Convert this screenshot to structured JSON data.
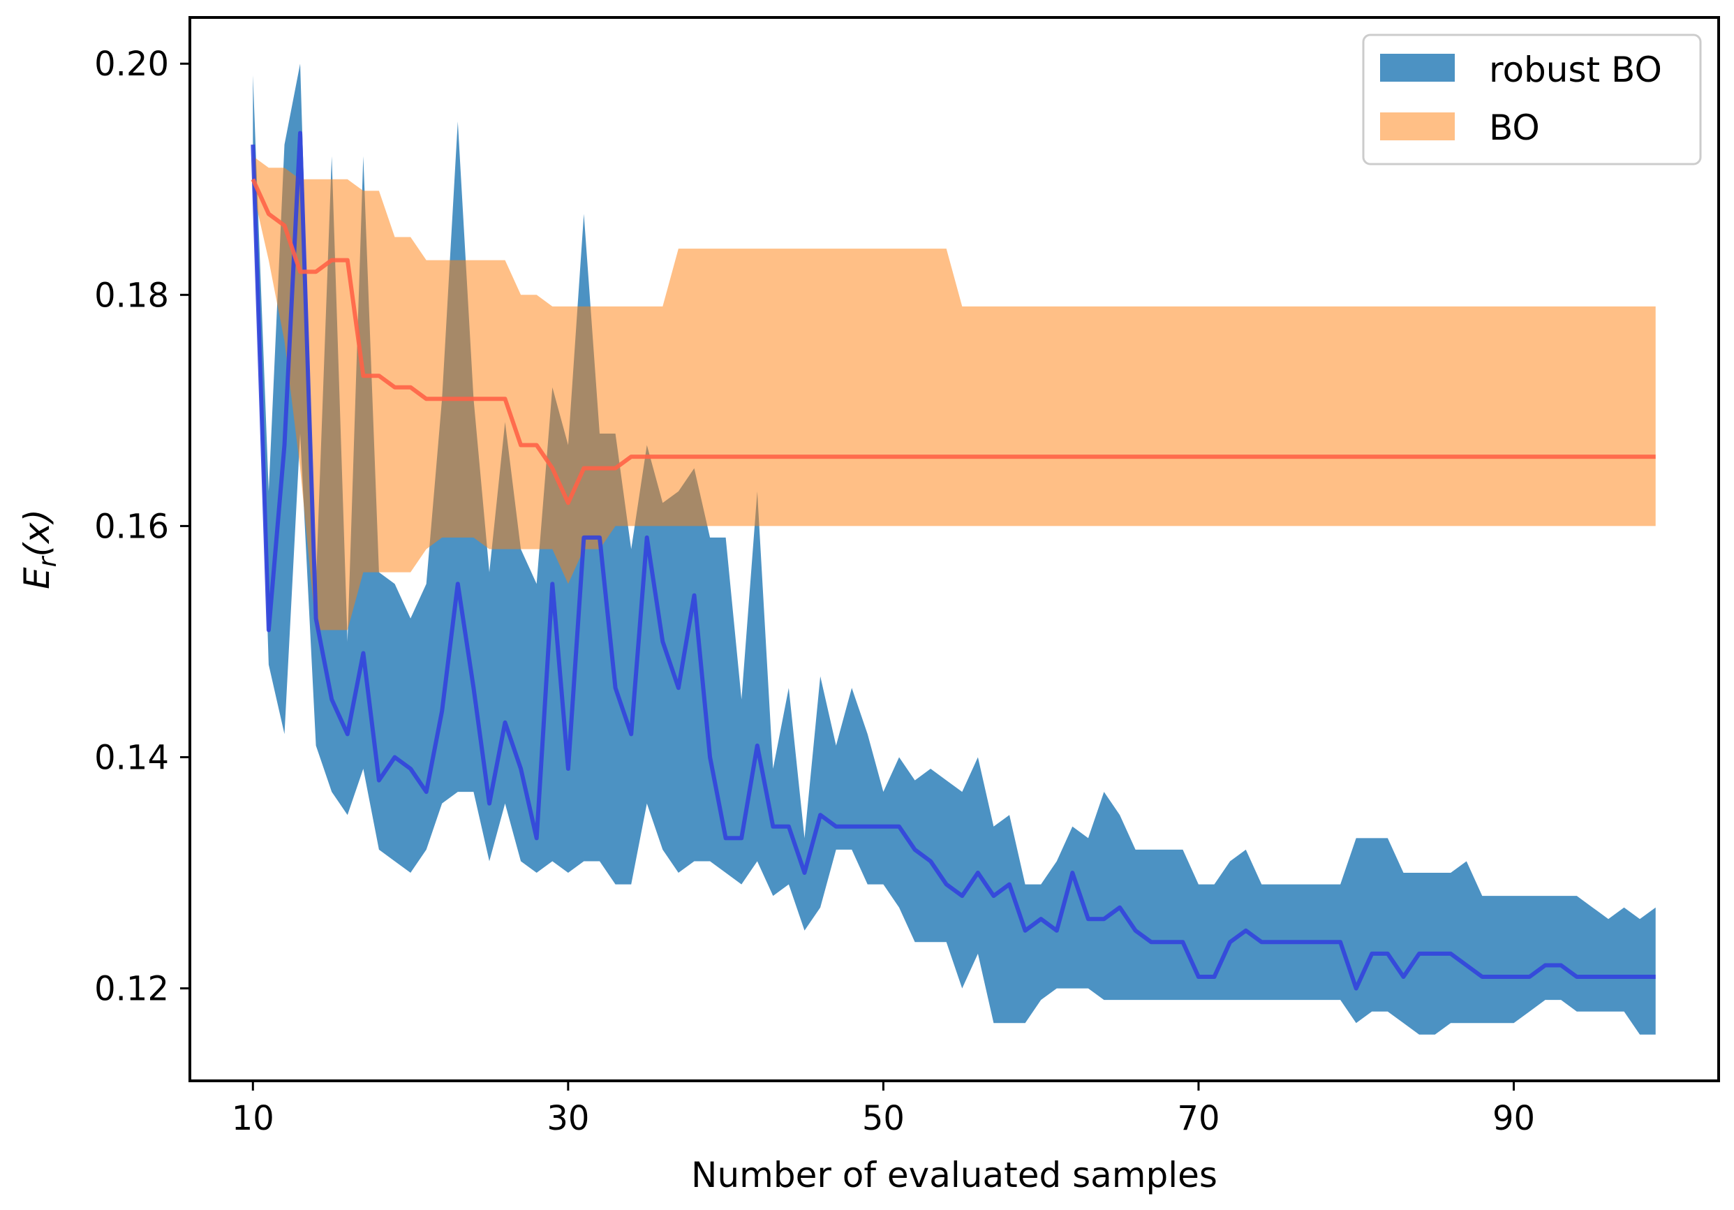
{
  "chart_data": {
    "type": "area",
    "title": "",
    "xlabel": "Number of evaluated samples",
    "ylabel": "E_r(x)",
    "ylabel_main": "E",
    "ylabel_sub": "r",
    "ylabel_paren": "(x)",
    "xlim": [
      6,
      103
    ],
    "ylim": [
      0.112,
      0.204
    ],
    "xticks": [
      10,
      30,
      50,
      70,
      90
    ],
    "xtick_labels": [
      "10",
      "30",
      "50",
      "70",
      "90"
    ],
    "yticks": [
      0.12,
      0.14,
      0.16,
      0.18,
      0.2
    ],
    "ytick_labels": [
      "0.12",
      "0.14",
      "0.16",
      "0.18",
      "0.20"
    ],
    "legend_position": "top-right",
    "series": [
      {
        "name": "robust BO",
        "fill_color": "#1f77b4",
        "fill_opacity": 0.8,
        "line_color": "#3344dd",
        "x": [
          10,
          11,
          12,
          13,
          14,
          15,
          16,
          17,
          18,
          19,
          20,
          21,
          22,
          23,
          24,
          25,
          26,
          27,
          28,
          29,
          30,
          31,
          32,
          33,
          34,
          35,
          36,
          37,
          38,
          39,
          40,
          41,
          42,
          43,
          44,
          45,
          46,
          47,
          48,
          49,
          50,
          51,
          52,
          53,
          54,
          55,
          56,
          57,
          58,
          59,
          60,
          61,
          62,
          63,
          64,
          65,
          66,
          67,
          68,
          69,
          70,
          71,
          72,
          73,
          74,
          75,
          76,
          77,
          78,
          79,
          80,
          81,
          82,
          83,
          84,
          85,
          86,
          87,
          88,
          89,
          90,
          91,
          92,
          93,
          94,
          95,
          96,
          97,
          98,
          99
        ],
        "mean": [
          0.193,
          0.151,
          0.167,
          0.194,
          0.152,
          0.145,
          0.142,
          0.149,
          0.138,
          0.14,
          0.139,
          0.137,
          0.144,
          0.155,
          0.146,
          0.136,
          0.143,
          0.139,
          0.133,
          0.155,
          0.139,
          0.159,
          0.159,
          0.146,
          0.142,
          0.159,
          0.15,
          0.146,
          0.154,
          0.14,
          0.133,
          0.133,
          0.141,
          0.134,
          0.134,
          0.13,
          0.135,
          0.134,
          0.134,
          0.134,
          0.134,
          0.134,
          0.132,
          0.131,
          0.129,
          0.128,
          0.13,
          0.128,
          0.129,
          0.125,
          0.126,
          0.125,
          0.13,
          0.126,
          0.126,
          0.127,
          0.125,
          0.124,
          0.124,
          0.124,
          0.121,
          0.121,
          0.124,
          0.125,
          0.124,
          0.124,
          0.124,
          0.124,
          0.124,
          0.124,
          0.12,
          0.123,
          0.123,
          0.121,
          0.123,
          0.123,
          0.123,
          0.122,
          0.121,
          0.121,
          0.121,
          0.121,
          0.122,
          0.122,
          0.121,
          0.121,
          0.121,
          0.121,
          0.121,
          0.121
        ],
        "upper": [
          0.199,
          0.163,
          0.193,
          0.2,
          0.155,
          0.192,
          0.15,
          0.192,
          0.156,
          0.155,
          0.152,
          0.155,
          0.171,
          0.195,
          0.171,
          0.156,
          0.169,
          0.158,
          0.155,
          0.172,
          0.167,
          0.187,
          0.168,
          0.168,
          0.158,
          0.167,
          0.162,
          0.163,
          0.165,
          0.159,
          0.159,
          0.145,
          0.163,
          0.139,
          0.146,
          0.133,
          0.147,
          0.141,
          0.146,
          0.142,
          0.137,
          0.14,
          0.138,
          0.139,
          0.138,
          0.137,
          0.14,
          0.134,
          0.135,
          0.129,
          0.129,
          0.131,
          0.134,
          0.133,
          0.137,
          0.135,
          0.132,
          0.132,
          0.132,
          0.132,
          0.129,
          0.129,
          0.131,
          0.132,
          0.129,
          0.129,
          0.129,
          0.129,
          0.129,
          0.129,
          0.133,
          0.133,
          0.133,
          0.13,
          0.13,
          0.13,
          0.13,
          0.131,
          0.128,
          0.128,
          0.128,
          0.128,
          0.128,
          0.128,
          0.128,
          0.127,
          0.126,
          0.127,
          0.126,
          0.127
        ],
        "lower": [
          0.19,
          0.148,
          0.142,
          0.168,
          0.141,
          0.137,
          0.135,
          0.139,
          0.132,
          0.131,
          0.13,
          0.132,
          0.136,
          0.137,
          0.137,
          0.131,
          0.136,
          0.131,
          0.13,
          0.131,
          0.13,
          0.131,
          0.131,
          0.129,
          0.129,
          0.136,
          0.132,
          0.13,
          0.131,
          0.131,
          0.13,
          0.129,
          0.131,
          0.128,
          0.129,
          0.125,
          0.127,
          0.132,
          0.132,
          0.129,
          0.129,
          0.127,
          0.124,
          0.124,
          0.124,
          0.12,
          0.123,
          0.117,
          0.117,
          0.117,
          0.119,
          0.12,
          0.12,
          0.12,
          0.119,
          0.119,
          0.119,
          0.119,
          0.119,
          0.119,
          0.119,
          0.119,
          0.119,
          0.119,
          0.119,
          0.119,
          0.119,
          0.119,
          0.119,
          0.119,
          0.117,
          0.118,
          0.118,
          0.117,
          0.116,
          0.116,
          0.117,
          0.117,
          0.117,
          0.117,
          0.117,
          0.118,
          0.119,
          0.119,
          0.118,
          0.118,
          0.118,
          0.118,
          0.116,
          0.116
        ]
      },
      {
        "name": "BO",
        "fill_color": "#ff7f0e",
        "fill_opacity": 0.5,
        "line_color": "#ff6347",
        "x": [
          10,
          11,
          12,
          13,
          14,
          15,
          16,
          17,
          18,
          19,
          20,
          21,
          22,
          23,
          24,
          25,
          26,
          27,
          28,
          29,
          30,
          31,
          32,
          33,
          34,
          35,
          36,
          37,
          38,
          39,
          40,
          41,
          42,
          43,
          44,
          45,
          46,
          47,
          48,
          49,
          50,
          51,
          52,
          53,
          54,
          55,
          56,
          57,
          58,
          59,
          60,
          61,
          62,
          63,
          64,
          65,
          66,
          67,
          68,
          69,
          70,
          71,
          72,
          73,
          74,
          75,
          76,
          77,
          78,
          79,
          80,
          81,
          82,
          83,
          84,
          85,
          86,
          87,
          88,
          89,
          90,
          91,
          92,
          93,
          94,
          95,
          96,
          97,
          98,
          99
        ],
        "mean": [
          0.19,
          0.187,
          0.186,
          0.182,
          0.182,
          0.183,
          0.183,
          0.173,
          0.173,
          0.172,
          0.172,
          0.171,
          0.171,
          0.171,
          0.171,
          0.171,
          0.171,
          0.167,
          0.167,
          0.165,
          0.162,
          0.165,
          0.165,
          0.165,
          0.166,
          0.166,
          0.166,
          0.166,
          0.166,
          0.166,
          0.166,
          0.166,
          0.166,
          0.166,
          0.166,
          0.166,
          0.166,
          0.166,
          0.166,
          0.166,
          0.166,
          0.166,
          0.166,
          0.166,
          0.166,
          0.166,
          0.166,
          0.166,
          0.166,
          0.166,
          0.166,
          0.166,
          0.166,
          0.166,
          0.166,
          0.166,
          0.166,
          0.166,
          0.166,
          0.166,
          0.166,
          0.166,
          0.166,
          0.166,
          0.166,
          0.166,
          0.166,
          0.166,
          0.166,
          0.166,
          0.166,
          0.166,
          0.166,
          0.166,
          0.166,
          0.166,
          0.166,
          0.166,
          0.166,
          0.166,
          0.166,
          0.166,
          0.166,
          0.166,
          0.166,
          0.166,
          0.166,
          0.166,
          0.166,
          0.166
        ],
        "upper": [
          0.192,
          0.191,
          0.191,
          0.19,
          0.19,
          0.19,
          0.19,
          0.189,
          0.189,
          0.185,
          0.185,
          0.183,
          0.183,
          0.183,
          0.183,
          0.183,
          0.183,
          0.18,
          0.18,
          0.179,
          0.179,
          0.179,
          0.179,
          0.179,
          0.179,
          0.179,
          0.179,
          0.184,
          0.184,
          0.184,
          0.184,
          0.184,
          0.184,
          0.184,
          0.184,
          0.184,
          0.184,
          0.184,
          0.184,
          0.184,
          0.184,
          0.184,
          0.184,
          0.184,
          0.184,
          0.179,
          0.179,
          0.179,
          0.179,
          0.179,
          0.179,
          0.179,
          0.179,
          0.179,
          0.179,
          0.179,
          0.179,
          0.179,
          0.179,
          0.179,
          0.179,
          0.179,
          0.179,
          0.179,
          0.179,
          0.179,
          0.179,
          0.179,
          0.179,
          0.179,
          0.179,
          0.179,
          0.179,
          0.179,
          0.179,
          0.179,
          0.179,
          0.179,
          0.179,
          0.179,
          0.179,
          0.179,
          0.179,
          0.179,
          0.179,
          0.179,
          0.179,
          0.179,
          0.179,
          0.179
        ],
        "lower": [
          0.189,
          0.183,
          0.176,
          0.165,
          0.151,
          0.151,
          0.151,
          0.156,
          0.156,
          0.156,
          0.156,
          0.158,
          0.159,
          0.159,
          0.159,
          0.158,
          0.158,
          0.158,
          0.158,
          0.158,
          0.155,
          0.158,
          0.158,
          0.16,
          0.16,
          0.16,
          0.16,
          0.16,
          0.16,
          0.16,
          0.16,
          0.16,
          0.16,
          0.16,
          0.16,
          0.16,
          0.16,
          0.16,
          0.16,
          0.16,
          0.16,
          0.16,
          0.16,
          0.16,
          0.16,
          0.16,
          0.16,
          0.16,
          0.16,
          0.16,
          0.16,
          0.16,
          0.16,
          0.16,
          0.16,
          0.16,
          0.16,
          0.16,
          0.16,
          0.16,
          0.16,
          0.16,
          0.16,
          0.16,
          0.16,
          0.16,
          0.16,
          0.16,
          0.16,
          0.16,
          0.16,
          0.16,
          0.16,
          0.16,
          0.16,
          0.16,
          0.16,
          0.16,
          0.16,
          0.16,
          0.16,
          0.16,
          0.16,
          0.16,
          0.16,
          0.16,
          0.16,
          0.16,
          0.16,
          0.16
        ]
      }
    ]
  }
}
